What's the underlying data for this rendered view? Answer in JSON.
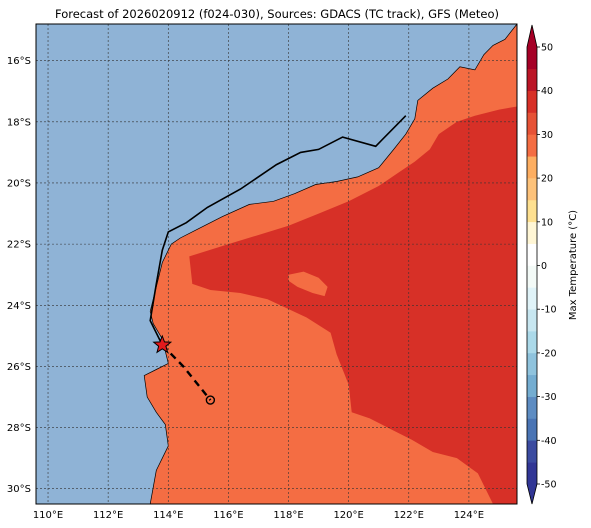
{
  "title": "Forecast of 2026020912 (f024-030), Sources: GDACS (TC track), GFS (Meteo)",
  "map": {
    "lon_range": [
      109.6,
      125.6
    ],
    "lat_range": [
      -30.5,
      -14.8
    ],
    "lon_ticks": [
      {
        "value": 110,
        "label": "110°E"
      },
      {
        "value": 112,
        "label": "112°E"
      },
      {
        "value": 114,
        "label": "114°E"
      },
      {
        "value": 116,
        "label": "116°E"
      },
      {
        "value": 118,
        "label": "118°E"
      },
      {
        "value": 120,
        "label": "120°E"
      },
      {
        "value": 122,
        "label": "122°E"
      },
      {
        "value": 124,
        "label": "124°E"
      }
    ],
    "lat_ticks": [
      {
        "value": -16,
        "label": "16°S"
      },
      {
        "value": -18,
        "label": "18°S"
      },
      {
        "value": -20,
        "label": "20°S"
      },
      {
        "value": -22,
        "label": "22°S"
      },
      {
        "value": -24,
        "label": "24°S"
      },
      {
        "value": -26,
        "label": "26°S"
      },
      {
        "value": -28,
        "label": "28°S"
      },
      {
        "value": -30,
        "label": "30°S"
      }
    ],
    "gridlines": true,
    "ocean_color": "#8fb3d6",
    "coast_color": "#000000"
  },
  "land": {
    "base_color": "#f46d43",
    "hot_color": "#d73027",
    "coast": [
      [
        113.4,
        -30.5
      ],
      [
        113.6,
        -29.4
      ],
      [
        114.0,
        -28.6
      ],
      [
        113.9,
        -27.9
      ],
      [
        113.6,
        -27.5
      ],
      [
        113.3,
        -27.0
      ],
      [
        113.2,
        -26.3
      ],
      [
        113.6,
        -26.1
      ],
      [
        114.0,
        -25.9
      ],
      [
        113.8,
        -25.1
      ],
      [
        113.5,
        -24.6
      ],
      [
        113.4,
        -24.2
      ],
      [
        113.6,
        -23.4
      ],
      [
        113.8,
        -22.6
      ],
      [
        114.1,
        -22.0
      ],
      [
        114.4,
        -21.8
      ],
      [
        115.0,
        -21.5
      ],
      [
        115.8,
        -21.1
      ],
      [
        116.7,
        -20.7
      ],
      [
        117.5,
        -20.6
      ],
      [
        118.2,
        -20.35
      ],
      [
        118.9,
        -20.05
      ],
      [
        119.6,
        -19.95
      ],
      [
        120.3,
        -19.8
      ],
      [
        121.0,
        -19.5
      ],
      [
        121.5,
        -18.9
      ],
      [
        121.9,
        -18.4
      ],
      [
        122.2,
        -17.9
      ],
      [
        122.3,
        -17.3
      ],
      [
        122.8,
        -16.9
      ],
      [
        123.3,
        -16.6
      ],
      [
        123.7,
        -16.2
      ],
      [
        124.2,
        -16.3
      ],
      [
        124.5,
        -15.8
      ],
      [
        124.8,
        -15.5
      ],
      [
        125.2,
        -15.3
      ],
      [
        125.6,
        -14.8
      ],
      [
        125.6,
        -30.5
      ]
    ],
    "hot_region": [
      [
        114.7,
        -22.4
      ],
      [
        116.0,
        -22.0
      ],
      [
        117.0,
        -21.7
      ],
      [
        118.0,
        -21.4
      ],
      [
        119.0,
        -21.0
      ],
      [
        120.0,
        -20.6
      ],
      [
        121.0,
        -20.1
      ],
      [
        121.6,
        -19.7
      ],
      [
        122.2,
        -19.3
      ],
      [
        122.7,
        -18.9
      ],
      [
        123.0,
        -18.4
      ],
      [
        123.6,
        -18.0
      ],
      [
        124.2,
        -17.8
      ],
      [
        125.0,
        -17.6
      ],
      [
        125.6,
        -17.5
      ],
      [
        125.6,
        -30.5
      ],
      [
        124.8,
        -30.5
      ],
      [
        124.3,
        -29.5
      ],
      [
        123.6,
        -29.0
      ],
      [
        122.8,
        -28.8
      ],
      [
        122.1,
        -28.4
      ],
      [
        121.3,
        -28.0
      ],
      [
        120.7,
        -27.7
      ],
      [
        120.1,
        -27.5
      ],
      [
        120.0,
        -26.6
      ],
      [
        119.6,
        -25.6
      ],
      [
        119.4,
        -24.9
      ],
      [
        118.6,
        -24.4
      ],
      [
        117.3,
        -23.8
      ],
      [
        116.4,
        -23.6
      ],
      [
        115.4,
        -23.5
      ],
      [
        114.8,
        -23.3
      ]
    ],
    "cool_patch": [
      [
        118.0,
        -23.0
      ],
      [
        118.5,
        -22.9
      ],
      [
        119.0,
        -23.1
      ],
      [
        119.3,
        -23.4
      ],
      [
        119.2,
        -23.7
      ],
      [
        118.8,
        -23.6
      ],
      [
        118.3,
        -23.4
      ],
      [
        118.0,
        -23.2
      ]
    ]
  },
  "tc_track": {
    "past": [
      [
        121.9,
        -17.8
      ],
      [
        120.9,
        -18.8
      ],
      [
        119.8,
        -18.5
      ],
      [
        119.0,
        -18.9
      ],
      [
        118.4,
        -19.0
      ],
      [
        117.6,
        -19.4
      ],
      [
        116.4,
        -20.2
      ],
      [
        115.3,
        -20.8
      ],
      [
        114.6,
        -21.3
      ],
      [
        114.0,
        -21.6
      ],
      [
        113.8,
        -22.2
      ],
      [
        113.6,
        -23.3
      ],
      [
        113.4,
        -24.5
      ],
      [
        113.8,
        -25.3
      ]
    ],
    "forecast": [
      [
        113.8,
        -25.3
      ],
      [
        114.5,
        -26.0
      ],
      [
        115.4,
        -27.1
      ]
    ],
    "current_position": [
      113.8,
      -25.3
    ],
    "forecast_end": [
      115.4,
      -27.1
    ]
  },
  "colorbar": {
    "label": "Max Temperature (°C)",
    "min": -50,
    "max": 50,
    "ticks": [
      50,
      40,
      30,
      20,
      10,
      0,
      -10,
      -20,
      -30,
      -40,
      -50
    ],
    "bins": [
      {
        "from": -50,
        "to": -45,
        "color": "#313695"
      },
      {
        "from": -45,
        "to": -40,
        "color": "#3b4ba0"
      },
      {
        "from": -40,
        "to": -35,
        "color": "#4a74b4"
      },
      {
        "from": -35,
        "to": -30,
        "color": "#5d8cc2"
      },
      {
        "from": -30,
        "to": -25,
        "color": "#74add1"
      },
      {
        "from": -25,
        "to": -20,
        "color": "#8fc3dd"
      },
      {
        "from": -20,
        "to": -15,
        "color": "#abd9e9"
      },
      {
        "from": -15,
        "to": -10,
        "color": "#c7e6f0"
      },
      {
        "from": -10,
        "to": -5,
        "color": "#e0f3f8"
      },
      {
        "from": -5,
        "to": 0,
        "color": "#f3faf7"
      },
      {
        "from": 0,
        "to": 5,
        "color": "#ffffff"
      },
      {
        "from": 5,
        "to": 10,
        "color": "#fff6d5"
      },
      {
        "from": 10,
        "to": 15,
        "color": "#fee090"
      },
      {
        "from": 15,
        "to": 20,
        "color": "#fdc27a"
      },
      {
        "from": 20,
        "to": 25,
        "color": "#fdae61"
      },
      {
        "from": 25,
        "to": 30,
        "color": "#f46d43"
      },
      {
        "from": 30,
        "to": 35,
        "color": "#e65236"
      },
      {
        "from": 35,
        "to": 40,
        "color": "#d73027"
      },
      {
        "from": 40,
        "to": 45,
        "color": "#bb1526"
      },
      {
        "from": 45,
        "to": 50,
        "color": "#a50026"
      }
    ]
  }
}
